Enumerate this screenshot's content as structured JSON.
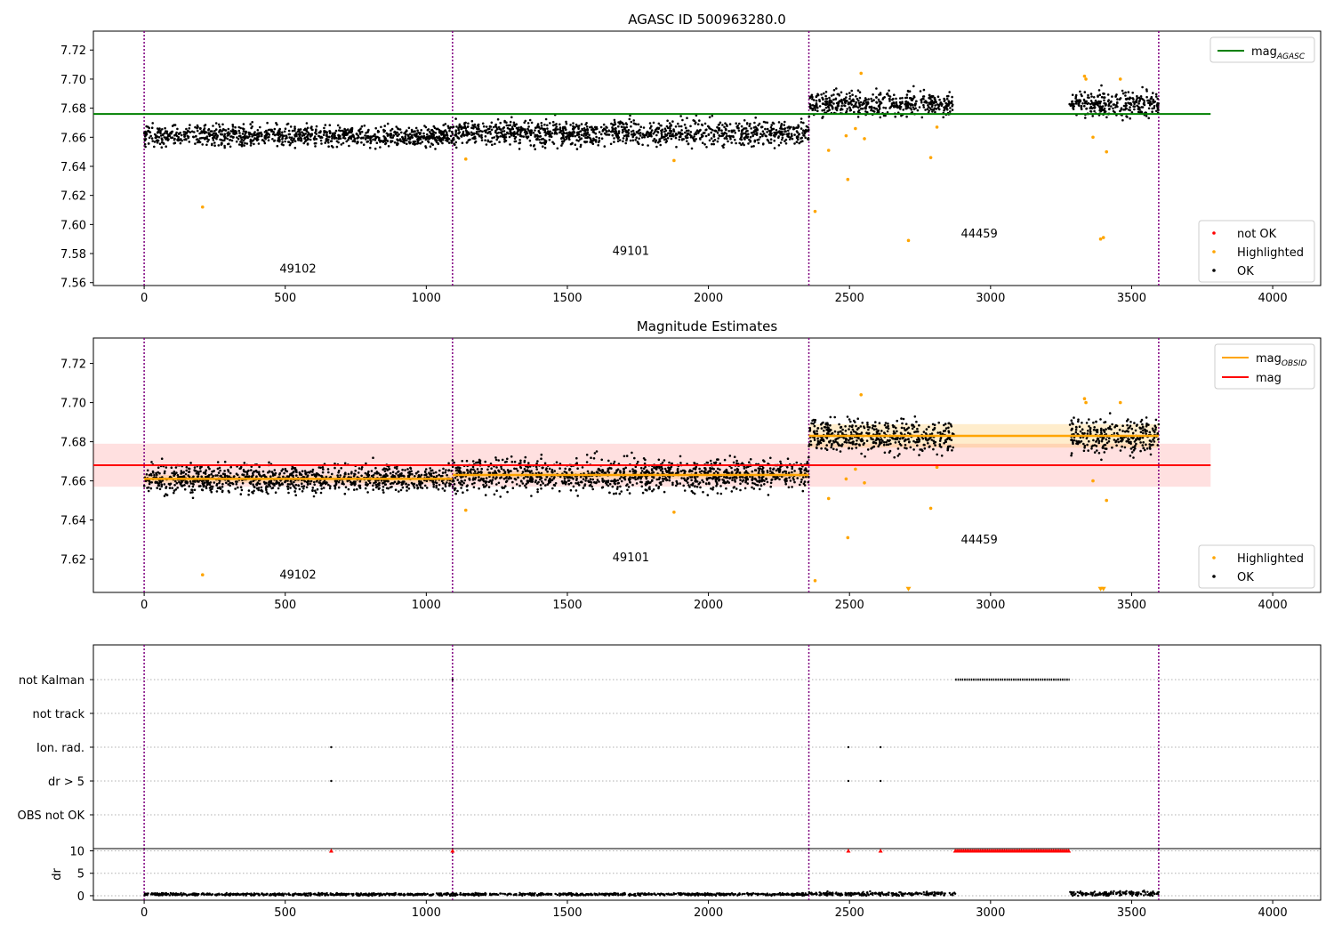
{
  "chart_data": [
    {
      "type": "scatter",
      "title": "AGASC ID 500963280.0",
      "xlabel": "",
      "ylabel": "",
      "xlim": [
        -180,
        4170
      ],
      "ylim": [
        7.558,
        7.733
      ],
      "xticks": [
        0,
        500,
        1000,
        1500,
        2000,
        2500,
        3000,
        3500,
        4000
      ],
      "yticks": [
        7.56,
        7.58,
        7.6,
        7.62,
        7.64,
        7.66,
        7.68,
        7.7,
        7.72
      ],
      "ytick_labels": [
        "7.56",
        "7.58",
        "7.60",
        "7.62",
        "7.64",
        "7.66",
        "7.68",
        "7.70",
        "7.72"
      ],
      "grid": false,
      "vlines": [
        0,
        1093,
        2356,
        3596
      ],
      "hlines": [
        {
          "name": "mag_AGASC",
          "y": 7.676,
          "x_range": [
            -180,
            3780
          ],
          "color": "#008000"
        }
      ],
      "segments": [
        {
          "x_range": [
            0,
            1093
          ],
          "center": 7.661,
          "spread": 0.005
        },
        {
          "x_range": [
            1093,
            2356
          ],
          "center": 7.663,
          "spread": 0.006
        },
        {
          "x_range": [
            2356,
            2870
          ],
          "center": 7.683,
          "spread": 0.006
        },
        {
          "x_range": [
            3280,
            3596
          ],
          "center": 7.683,
          "spread": 0.006
        }
      ],
      "highlighted_points": [
        [
          207,
          7.612
        ],
        [
          1140,
          7.645
        ],
        [
          1878,
          7.644
        ],
        [
          2378,
          7.609
        ],
        [
          2426,
          7.651
        ],
        [
          2488,
          7.661
        ],
        [
          2494,
          7.631
        ],
        [
          2521,
          7.666
        ],
        [
          2541,
          7.704
        ],
        [
          2553,
          7.659
        ],
        [
          2709,
          7.589
        ],
        [
          2788,
          7.646
        ],
        [
          2810,
          7.667
        ],
        [
          3333,
          7.702
        ],
        [
          3338,
          7.7
        ],
        [
          3363,
          7.66
        ],
        [
          3390,
          7.59
        ],
        [
          3400,
          7.591
        ],
        [
          3411,
          7.65
        ],
        [
          3460,
          7.7
        ]
      ],
      "annotations": [
        {
          "text": "49102",
          "x": 545,
          "y": 7.567
        },
        {
          "text": "49101",
          "x": 1725,
          "y": 7.579
        },
        {
          "text": "44459",
          "x": 2960,
          "y": 7.591
        }
      ],
      "legend_top": {
        "placement": "top-right",
        "entries": [
          {
            "label": "mag",
            "sub": "AGASC",
            "color": "#008000"
          }
        ]
      },
      "legend_bottom": {
        "placement": "lower-right",
        "entries": [
          {
            "label": "not OK",
            "color": "#ff0000"
          },
          {
            "label": "Highlighted",
            "color": "#ffa500"
          },
          {
            "label": "OK",
            "color": "#000000"
          }
        ]
      }
    },
    {
      "type": "scatter",
      "title": "Magnitude Estimates",
      "xlabel": "",
      "ylabel": "",
      "xlim": [
        -180,
        4170
      ],
      "ylim": [
        7.603,
        7.733
      ],
      "xticks": [
        0,
        500,
        1000,
        1500,
        2000,
        2500,
        3000,
        3500,
        4000
      ],
      "yticks": [
        7.62,
        7.64,
        7.66,
        7.68,
        7.7,
        7.72
      ],
      "ytick_labels": [
        "7.62",
        "7.64",
        "7.66",
        "7.68",
        "7.70",
        "7.72"
      ],
      "grid": false,
      "vlines": [
        0,
        1093,
        2356,
        3596
      ],
      "mag": {
        "y": 7.668,
        "band": [
          7.657,
          7.679
        ],
        "x_range": [
          -180,
          3780
        ],
        "color": "#ff0000"
      },
      "mag_obsid": [
        {
          "x_range": [
            0,
            1093
          ],
          "y": 7.661,
          "band": [
            7.659,
            7.663
          ]
        },
        {
          "x_range": [
            1093,
            2356
          ],
          "y": 7.663,
          "band": [
            7.661,
            7.665
          ]
        },
        {
          "x_range": [
            2356,
            3596
          ],
          "y": 7.683,
          "band": [
            7.677,
            7.689
          ]
        }
      ],
      "segments": [
        {
          "x_range": [
            0,
            1093
          ],
          "center": 7.661,
          "spread": 0.005
        },
        {
          "x_range": [
            1093,
            2356
          ],
          "center": 7.663,
          "spread": 0.006
        },
        {
          "x_range": [
            2356,
            2870
          ],
          "center": 7.683,
          "spread": 0.006
        },
        {
          "x_range": [
            3280,
            3596
          ],
          "center": 7.683,
          "spread": 0.006
        }
      ],
      "highlighted_points": [
        [
          207,
          7.612
        ],
        [
          1140,
          7.645
        ],
        [
          1878,
          7.644
        ],
        [
          2378,
          7.609
        ],
        [
          2426,
          7.651
        ],
        [
          2488,
          7.661
        ],
        [
          2494,
          7.631
        ],
        [
          2521,
          7.666
        ],
        [
          2541,
          7.704
        ],
        [
          2553,
          7.659
        ],
        [
          2788,
          7.646
        ],
        [
          2810,
          7.667
        ],
        [
          3333,
          7.702
        ],
        [
          3338,
          7.7
        ],
        [
          3363,
          7.66
        ],
        [
          3411,
          7.65
        ],
        [
          3460,
          7.7
        ]
      ],
      "clipped_points": [
        [
          2709,
          7.6045
        ],
        [
          3390,
          7.6045
        ],
        [
          3400,
          7.6045
        ]
      ],
      "annotations": [
        {
          "text": "49102",
          "x": 545,
          "y": 7.61
        },
        {
          "text": "49101",
          "x": 1725,
          "y": 7.619
        },
        {
          "text": "44459",
          "x": 2960,
          "y": 7.628
        }
      ],
      "legend_top": {
        "placement": "top-right",
        "entries": [
          {
            "label": "mag",
            "sub": "OBSID",
            "color": "#ffa500"
          },
          {
            "label": "mag",
            "sub": "",
            "color": "#ff0000"
          }
        ]
      },
      "legend_bottom": {
        "placement": "lower-right",
        "entries": [
          {
            "label": "Highlighted",
            "color": "#ffa500"
          },
          {
            "label": "OK",
            "color": "#000000"
          }
        ]
      }
    },
    {
      "type": "scatter",
      "title": "",
      "xlabel": "",
      "ylabel": "",
      "xlim": [
        -180,
        4170
      ],
      "categories": [
        "not Kalman",
        "not track",
        "Ion. rad.",
        "dr > 5",
        "OBS not OK"
      ],
      "grid": true,
      "vlines": [
        0,
        1093,
        2356,
        3596
      ],
      "flags": {
        "not Kalman": {
          "points": [
            1093
          ],
          "ranges": [
            [
              2875,
              3280
            ]
          ]
        },
        "not track": {
          "points": [],
          "ranges": []
        },
        "Ion. rad.": {
          "points": [
            663,
            2496,
            2610
          ],
          "ranges": []
        },
        "dr > 5": {
          "points": [
            663,
            2496,
            2610
          ],
          "ranges": []
        },
        "OBS not OK": {
          "points": [],
          "ranges": []
        }
      }
    },
    {
      "type": "scatter",
      "title": "",
      "xlabel": "",
      "ylabel": "dr",
      "xlim": [
        -180,
        4170
      ],
      "ylim": [
        -1,
        10.5
      ],
      "xticks": [
        0,
        500,
        1000,
        1500,
        2000,
        2500,
        3000,
        3500,
        4000
      ],
      "yticks": [
        0,
        5,
        10
      ],
      "ytick_labels": [
        "0",
        "5",
        "10"
      ],
      "grid": true,
      "vlines": [
        0,
        1093,
        2356,
        3596
      ],
      "dr_segments": [
        {
          "x_range": [
            0,
            2356
          ],
          "center": 0.3,
          "spread": 0.2
        },
        {
          "x_range": [
            2356,
            2875
          ],
          "center": 0.4,
          "spread": 0.3
        },
        {
          "x_range": [
            3280,
            3596
          ],
          "center": 0.5,
          "spread": 0.4
        }
      ],
      "clipped_points": [
        [
          663,
          10
        ],
        [
          1093,
          10
        ],
        [
          2496,
          10
        ],
        [
          2610,
          10
        ]
      ],
      "clipped_ranges": [
        [
          2875,
          3280,
          10
        ]
      ]
    }
  ]
}
